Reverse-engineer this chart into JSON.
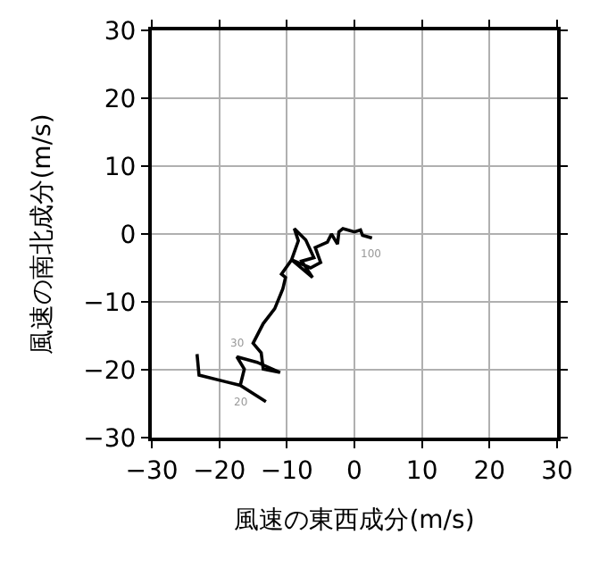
{
  "chart_data": {
    "type": "line",
    "xlabel": "風速の東西成分(m/s)",
    "ylabel": "風速の南北成分(m/s)",
    "xlim": [
      -30,
      30
    ],
    "xticks": [
      {
        "value": -30,
        "label": "−30"
      },
      {
        "value": -20,
        "label": "−20"
      },
      {
        "value": -10,
        "label": "−10"
      },
      0,
      10,
      20,
      30
    ],
    "ylim": [
      -30,
      30
    ],
    "yticks": [
      {
        "value": -30,
        "label": "−30"
      },
      {
        "value": -20,
        "label": "−20"
      },
      {
        "value": -10,
        "label": "−10"
      },
      0,
      10,
      20,
      30
    ],
    "grid": true,
    "marker": "none",
    "line_style": "solid",
    "series": [
      {
        "color": "#000000",
        "x": [
          -23.3,
          -23.0,
          -16.9,
          -13.1,
          -16.9,
          -16.3,
          -17.4,
          -14.4,
          -11.0,
          -13.5,
          -13.8,
          -15.0,
          -13.5,
          -11.8,
          -10.6,
          -10.2,
          -10.8,
          -9.3,
          -6.2,
          -7.8,
          -6.0,
          -7.2,
          -8.9,
          -8.3,
          -9.3,
          -6.5,
          -5.0,
          -5.8,
          -4.0,
          -3.4,
          -2.5,
          -2.3,
          -1.7,
          0.0,
          0.9,
          1.2,
          2.6
        ],
        "values": [
          -17.7,
          -20.8,
          -22.3,
          -24.7,
          -22.3,
          -19.9,
          -18.1,
          -18.9,
          -20.4,
          -19.9,
          -17.5,
          -16.1,
          -13.2,
          -11.0,
          -8.1,
          -6.4,
          -5.9,
          -3.8,
          -6.4,
          -4.0,
          -3.5,
          -0.9,
          0.8,
          -1.0,
          -3.8,
          -5.0,
          -4.2,
          -2.0,
          -1.2,
          0.0,
          -1.5,
          0.3,
          0.8,
          0.3,
          0.6,
          -0.2,
          -0.6
        ]
      }
    ],
    "annotations": [
      {
        "text": "20",
        "x": -16.9,
        "y": -22.3
      },
      {
        "text": "30",
        "x": -15.0,
        "y": -16.1
      },
      {
        "text": "100",
        "x": 2.6,
        "y": -0.6
      }
    ]
  }
}
